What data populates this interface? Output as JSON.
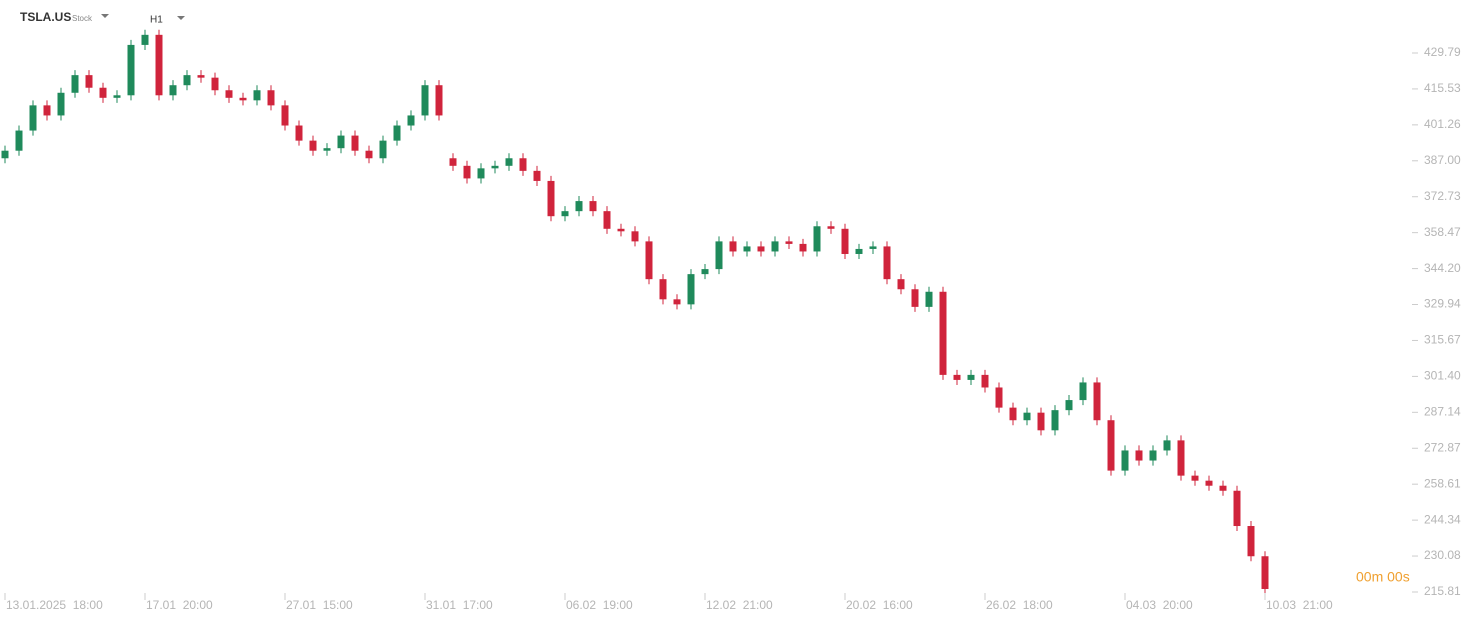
{
  "header": {
    "symbol": "TSLA.US",
    "kind": "Stock",
    "interval": "H1"
  },
  "countdown": "00m 00s",
  "chart_data": {
    "type": "candlestick",
    "up_color": "#1f8a5b",
    "down_color": "#d0243c",
    "categories": [
      "13.01.2025  18:00",
      null,
      null,
      null,
      null,
      null,
      null,
      null,
      null,
      null,
      "17.01  20:00",
      null,
      null,
      null,
      null,
      null,
      null,
      null,
      null,
      null,
      "27.01  15:00",
      null,
      null,
      null,
      null,
      null,
      null,
      null,
      null,
      null,
      "31.01  17:00",
      null,
      null,
      null,
      null,
      null,
      null,
      null,
      null,
      null,
      "06.02  19:00",
      null,
      null,
      null,
      null,
      null,
      null,
      null,
      null,
      null,
      "12.02  21:00",
      null,
      null,
      null,
      null,
      null,
      null,
      null,
      null,
      null,
      "20.02  16:00",
      null,
      null,
      null,
      null,
      null,
      null,
      null,
      null,
      null,
      "26.02  18:00",
      null,
      null,
      null,
      null,
      null,
      null,
      null,
      null,
      null,
      "04.03  20:00",
      null,
      null,
      null,
      null,
      null,
      null,
      null,
      null,
      null,
      "10.03  21:00"
    ],
    "open": [
      388,
      391,
      399,
      409,
      405,
      414,
      421,
      416,
      412,
      413,
      433,
      437,
      413,
      417,
      421,
      420,
      415,
      412,
      411,
      415,
      409,
      401,
      395,
      391,
      392,
      397,
      391,
      388,
      395,
      401,
      405,
      417,
      388,
      385,
      380,
      384,
      385,
      388,
      383,
      379,
      365,
      367,
      371,
      367,
      360,
      359,
      355,
      340,
      332,
      330,
      342,
      344,
      355,
      351,
      353,
      351,
      355,
      354,
      351,
      361,
      360,
      350,
      352,
      353,
      340,
      336,
      329,
      335,
      302,
      300,
      302,
      297,
      289,
      284,
      287,
      280,
      288,
      292,
      299,
      284,
      264,
      272,
      268,
      272,
      276,
      262,
      260,
      258,
      256,
      242,
      230
    ],
    "high": [
      393,
      401,
      411,
      411,
      416,
      423,
      423,
      418,
      415,
      435,
      439,
      439,
      419,
      423,
      423,
      422,
      417,
      414,
      417,
      417,
      411,
      403,
      397,
      394,
      399,
      399,
      393,
      397,
      403,
      407,
      419,
      419,
      390,
      387,
      386,
      387,
      390,
      390,
      385,
      381,
      369,
      373,
      373,
      369,
      362,
      361,
      357,
      342,
      334,
      344,
      346,
      357,
      357,
      355,
      355,
      357,
      357,
      356,
      363,
      363,
      362,
      354,
      355,
      355,
      342,
      338,
      337,
      337,
      304,
      304,
      304,
      299,
      291,
      289,
      289,
      290,
      294,
      301,
      301,
      286,
      274,
      274,
      274,
      278,
      278,
      264,
      262,
      260,
      258,
      244,
      232
    ],
    "low": [
      386,
      389,
      397,
      403,
      403,
      412,
      414,
      410,
      410,
      411,
      431,
      411,
      411,
      415,
      418,
      413,
      410,
      409,
      409,
      407,
      399,
      393,
      389,
      389,
      390,
      389,
      386,
      386,
      393,
      399,
      403,
      403,
      383,
      378,
      378,
      382,
      383,
      381,
      377,
      363,
      363,
      365,
      365,
      358,
      357,
      353,
      338,
      330,
      328,
      328,
      340,
      342,
      349,
      349,
      349,
      349,
      352,
      349,
      349,
      358,
      348,
      348,
      350,
      338,
      334,
      327,
      327,
      300,
      298,
      298,
      295,
      287,
      282,
      282,
      278,
      278,
      286,
      290,
      282,
      262,
      262,
      266,
      266,
      270,
      260,
      258,
      256,
      254,
      240,
      228,
      215
    ],
    "close": [
      391,
      399,
      409,
      405,
      414,
      421,
      416,
      412,
      413,
      433,
      437,
      413,
      417,
      421,
      420,
      415,
      412,
      411,
      415,
      409,
      401,
      395,
      391,
      392,
      397,
      391,
      388,
      395,
      401,
      405,
      417,
      405,
      385,
      380,
      384,
      385,
      388,
      383,
      379,
      365,
      367,
      371,
      367,
      360,
      359,
      355,
      340,
      332,
      330,
      342,
      344,
      355,
      351,
      353,
      351,
      355,
      354,
      351,
      361,
      360,
      350,
      352,
      353,
      340,
      336,
      329,
      335,
      302,
      300,
      302,
      297,
      289,
      284,
      287,
      280,
      288,
      292,
      299,
      284,
      264,
      272,
      268,
      272,
      276,
      262,
      260,
      258,
      256,
      242,
      230,
      217
    ],
    "ylim": [
      212.63,
      450.83
    ],
    "yticks": [
      429.79,
      415.53,
      401.26,
      {
        "value": 387,
        "label": "387.00"
      },
      372.73,
      358.47,
      {
        "value": 344.2,
        "label": "344.20"
      },
      329.94,
      315.67,
      {
        "value": 301.4,
        "label": "301.40"
      },
      287.14,
      272.87,
      258.61,
      244.34,
      230.08,
      215.81
    ]
  }
}
